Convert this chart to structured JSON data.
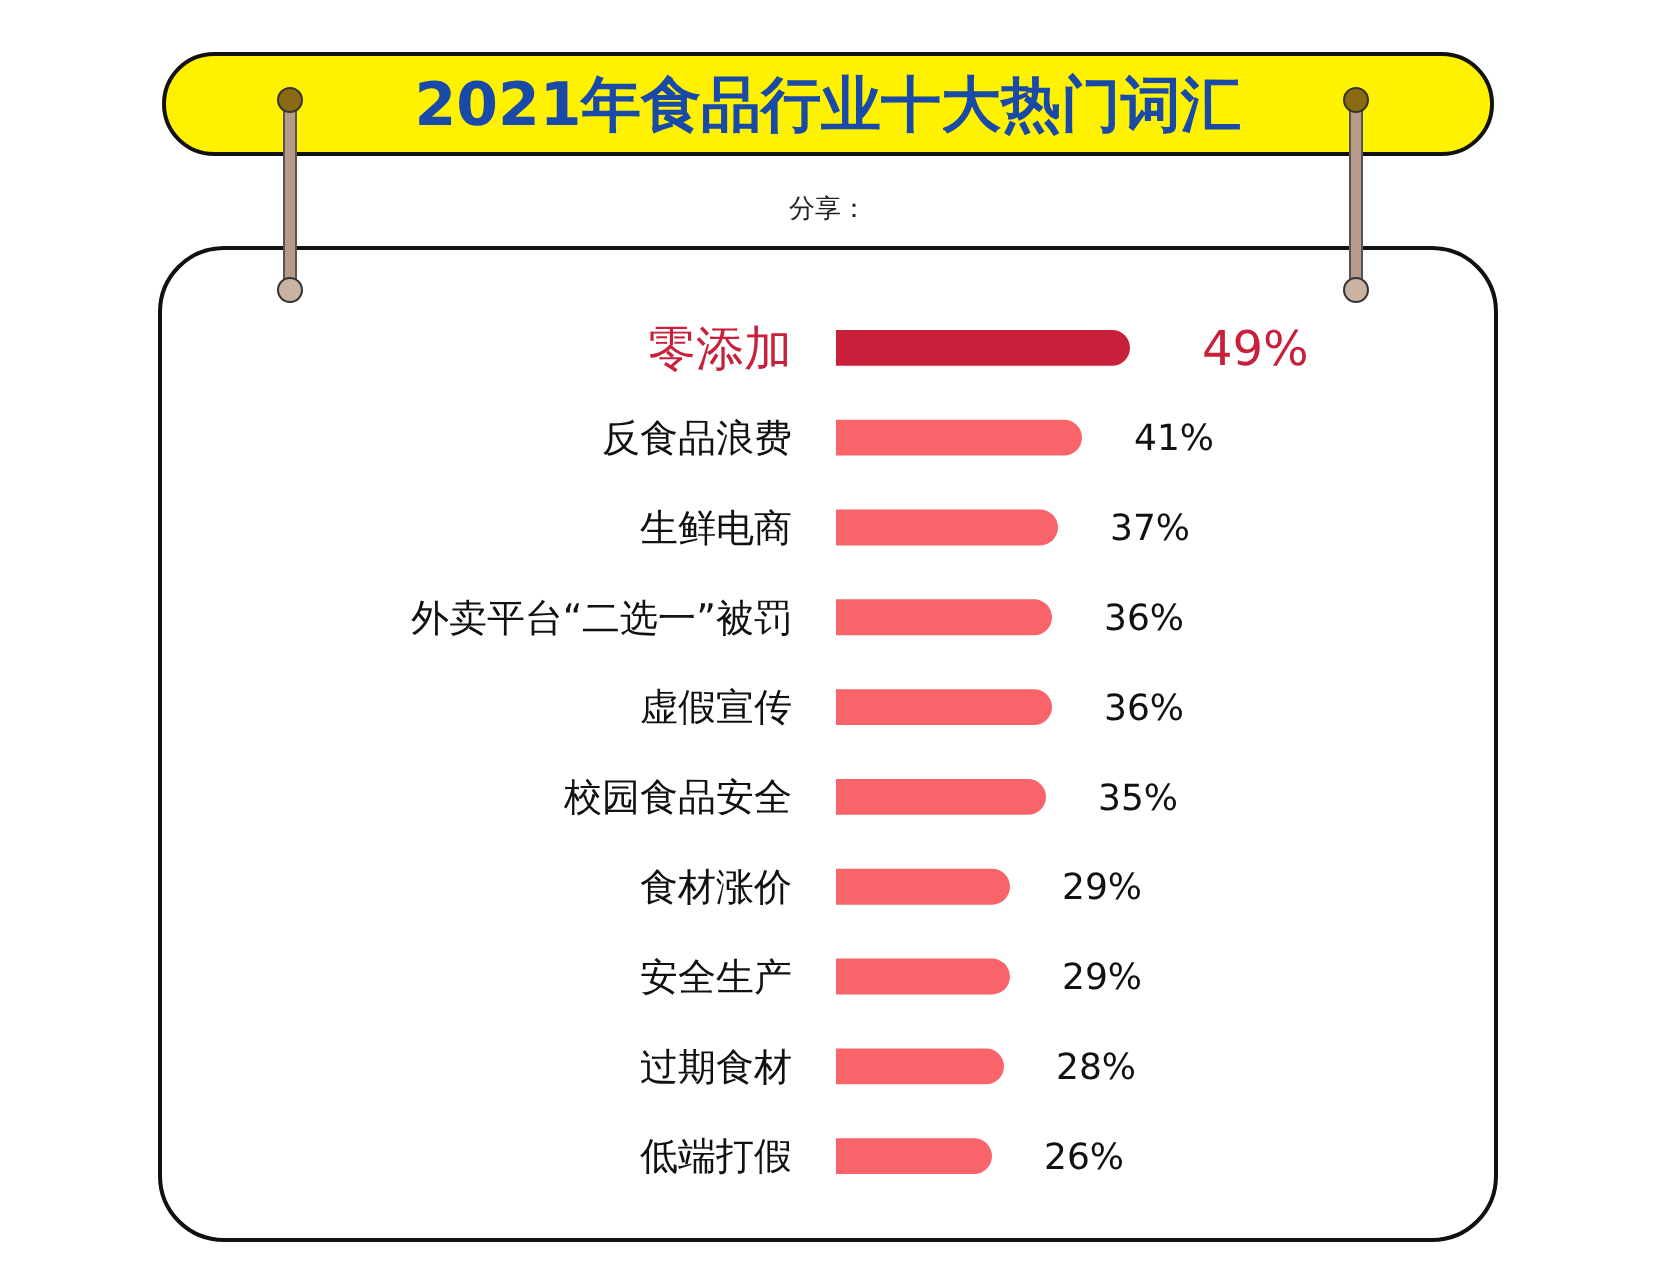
{
  "chart_data": {
    "type": "bar",
    "orientation": "horizontal",
    "title": "2021年食品行业十大热门词汇",
    "annotations": [
      "分享："
    ],
    "categories": [
      "零添加",
      "反食品浪费",
      "生鲜电商",
      "外卖平台“二选一”被罚",
      "虚假宣传",
      "校园食品安全",
      "食材涨价",
      "安全生产",
      "过期食材",
      "低端打假"
    ],
    "values": [
      49,
      41,
      37,
      36,
      36,
      35,
      29,
      29,
      28,
      26
    ],
    "value_labels": [
      "49%",
      "41%",
      "37%",
      "36%",
      "36%",
      "35%",
      "29%",
      "29%",
      "28%",
      "26%"
    ],
    "colors": [
      "#c8203a",
      "#f8646a",
      "#f8646a",
      "#f8646a",
      "#f8646a",
      "#f8646a",
      "#f8646a",
      "#f8646a",
      "#f8646a",
      "#f8646a"
    ]
  }
}
